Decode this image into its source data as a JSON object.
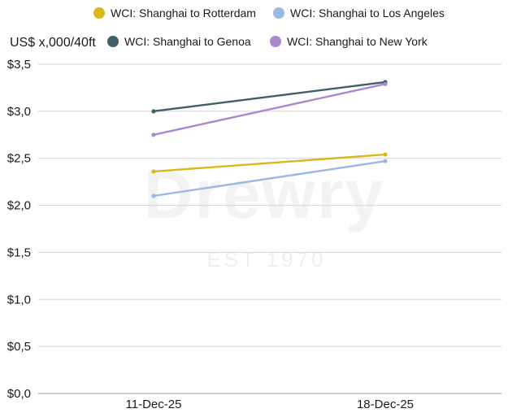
{
  "chart_data": {
    "type": "line",
    "ylabel": "US$ x,000/40ft",
    "categories": [
      "11-Dec-25",
      "18-Dec-25"
    ],
    "ylim": [
      0,
      3.5
    ],
    "yticks": [
      "$0,0",
      "$0,5",
      "$1,0",
      "$1,5",
      "$2,0",
      "$2,5",
      "$3,0",
      "$3,5"
    ],
    "grid": "horizontal",
    "legend_position": "top",
    "series": [
      {
        "name": "WCI: Shanghai to Rotterdam",
        "color": "#d9b81a",
        "values": [
          2.36,
          2.54
        ]
      },
      {
        "name": "WCI: Shanghai to Los Angeles",
        "color": "#9bb9e0",
        "values": [
          2.1,
          2.47
        ]
      },
      {
        "name": "WCI: Shanghai to Genoa",
        "color": "#3f5f6b",
        "values": [
          3.0,
          3.31
        ]
      },
      {
        "name": "WCI: Shanghai to New York",
        "color": "#a989cc",
        "values": [
          2.75,
          3.29
        ]
      }
    ]
  },
  "watermark": {
    "brand": "Drewry",
    "tagline": "EST 1970"
  }
}
